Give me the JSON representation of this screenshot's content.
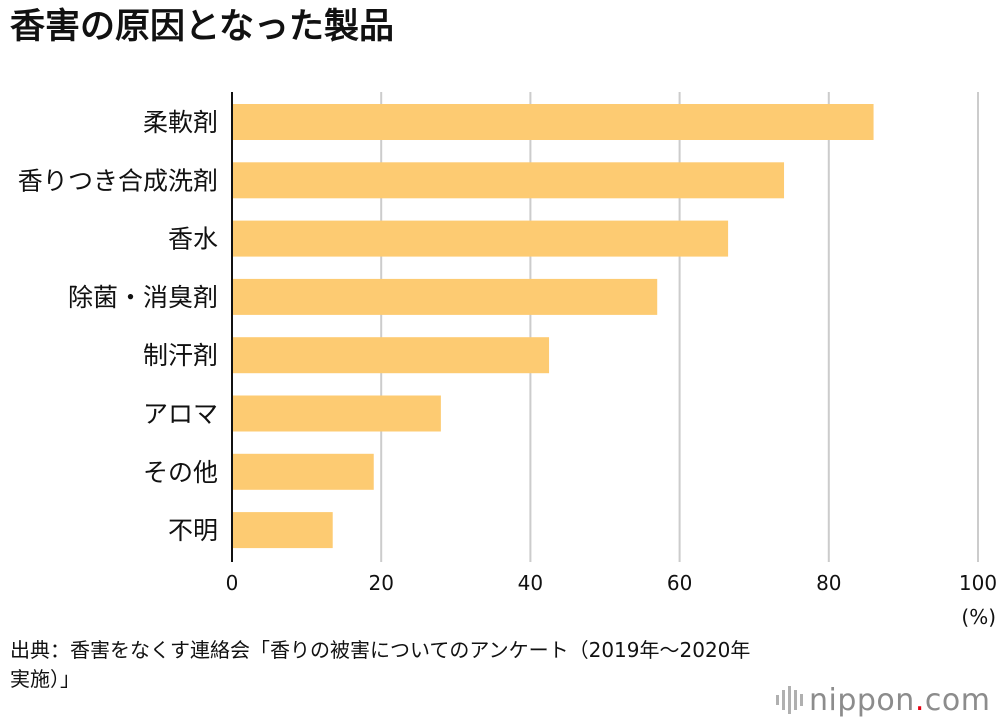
{
  "chart_data": {
    "type": "bar",
    "orientation": "horizontal",
    "title": "香害の原因となった製品",
    "categories": [
      "柔軟剤",
      "香りつき合成洗剤",
      "香水",
      "除菌・消臭剤",
      "制汗剤",
      "アロマ",
      "その他",
      "不明"
    ],
    "values": [
      86,
      74,
      66.5,
      57,
      42.5,
      28,
      19,
      13.5
    ],
    "xlim": [
      0,
      100
    ],
    "xticks": [
      "0",
      "20",
      "40",
      "60",
      "80",
      "100"
    ],
    "unit_label": "(%)",
    "grid": true,
    "bar_color": "#fdcb72"
  },
  "source": "出典：香害をなくす連絡会「香りの被害についてのアンケート（2019年〜2020年実施）」",
  "logo": {
    "name": "nippon",
    "dot": ".",
    "tld": "com"
  }
}
